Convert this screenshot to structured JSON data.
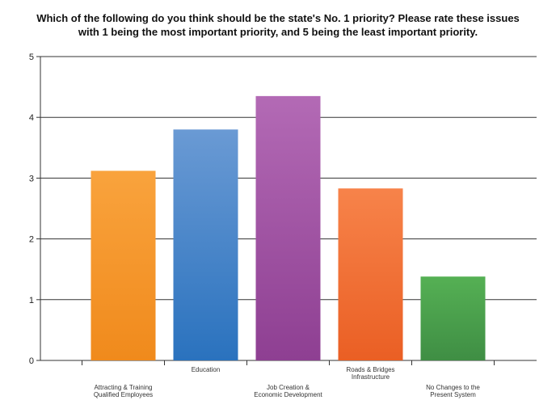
{
  "chart_data": {
    "type": "bar",
    "title_lines": [
      "Which of the following do you think should be the state's No. 1 priority?  Please rate these issues",
      "with 1 being the most important priority, and 5 being the least important priority."
    ],
    "xlabel": "",
    "ylabel": "",
    "ylim": [
      0,
      5
    ],
    "yticks": [
      0,
      1,
      2,
      3,
      4,
      5
    ],
    "grid": true,
    "legend": "none",
    "categories": [
      {
        "lines": [
          "Attracting & Training",
          "Qualified Employees"
        ],
        "label_position": "low"
      },
      {
        "lines": [
          "Education"
        ],
        "label_position": "high"
      },
      {
        "lines": [
          "Job Creation &",
          "Economic Development"
        ],
        "label_position": "low"
      },
      {
        "lines": [
          "Roads & Bridges",
          "Infrastructure"
        ],
        "label_position": "high"
      },
      {
        "lines": [
          "No Changes to the",
          "Present System"
        ],
        "label_position": "low"
      }
    ],
    "values": [
      3.12,
      3.8,
      4.35,
      2.83,
      1.38
    ],
    "colors": [
      {
        "top": "#f9a33d",
        "bottom": "#f08a1c"
      },
      {
        "top": "#6a9ad4",
        "bottom": "#2a72be"
      },
      {
        "top": "#b36ab5",
        "bottom": "#8e3f92"
      },
      {
        "top": "#f7834a",
        "bottom": "#ea5f24"
      },
      {
        "top": "#55b054",
        "bottom": "#3f8e44"
      }
    ]
  }
}
